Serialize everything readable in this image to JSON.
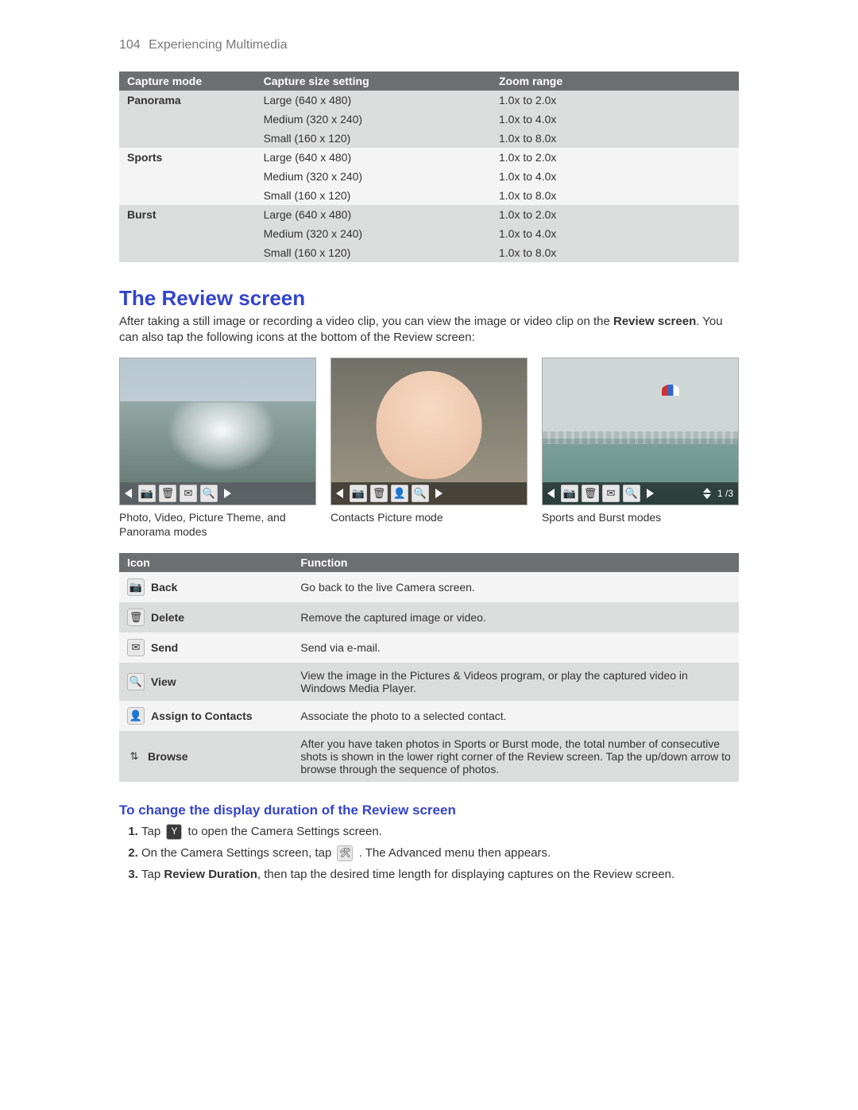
{
  "page": {
    "number": "104",
    "chapter": "Experiencing Multimedia"
  },
  "capture_table": {
    "headers": [
      "Capture mode",
      "Capture size setting",
      "Zoom range"
    ],
    "groups": [
      {
        "mode": "Panorama",
        "rows": [
          {
            "size": "Large (640 x 480)",
            "zoom": "1.0x to 2.0x"
          },
          {
            "size": "Medium (320 x 240)",
            "zoom": "1.0x to 4.0x"
          },
          {
            "size": "Small (160 x 120)",
            "zoom": "1.0x to 8.0x"
          }
        ]
      },
      {
        "mode": "Sports",
        "rows": [
          {
            "size": "Large (640 x 480)",
            "zoom": "1.0x to 2.0x"
          },
          {
            "size": "Medium (320 x 240)",
            "zoom": "1.0x to 4.0x"
          },
          {
            "size": "Small (160 x 120)",
            "zoom": "1.0x to 8.0x"
          }
        ]
      },
      {
        "mode": "Burst",
        "rows": [
          {
            "size": "Large (640 x 480)",
            "zoom": "1.0x to 2.0x"
          },
          {
            "size": "Medium (320 x 240)",
            "zoom": "1.0x to 4.0x"
          },
          {
            "size": "Small (160 x 120)",
            "zoom": "1.0x to 8.0x"
          }
        ]
      }
    ]
  },
  "section": {
    "title": "The Review screen",
    "body_before": "After taking a still image or recording a video clip, you can view the image or video clip on the ",
    "body_bold": "Review screen",
    "body_after": ". You can also tap the following icons at the bottom of the Review screen:"
  },
  "screens": [
    {
      "caption": "Photo, Video, Picture Theme, and Panorama modes",
      "toolbar": [
        "left",
        "camera",
        "trash",
        "mail",
        "zoom",
        "right"
      ]
    },
    {
      "caption": "Contacts Picture mode",
      "toolbar": [
        "left",
        "camera",
        "trash",
        "contact",
        "zoom",
        "right"
      ]
    },
    {
      "caption": "Sports and Burst modes",
      "toolbar": [
        "left",
        "camera",
        "trash",
        "mail",
        "zoom",
        "right",
        "updown"
      ],
      "counter": "1 /3"
    }
  ],
  "icon_table": {
    "headers": [
      "Icon",
      "Function"
    ],
    "rows": [
      {
        "glyph": "📷",
        "name": "camera-icon",
        "label": "Back",
        "func": "Go back to the live Camera screen."
      },
      {
        "glyph": "🗑",
        "name": "trash-icon",
        "label": "Delete",
        "func": "Remove the captured image or video."
      },
      {
        "glyph": "✉",
        "name": "mail-icon",
        "label": "Send",
        "func": "Send via e-mail."
      },
      {
        "glyph": "🔍",
        "name": "zoom-icon",
        "label": "View",
        "func": "View the image in the Pictures & Videos program, or play the captured video in Windows Media Player."
      },
      {
        "glyph": "👤",
        "name": "contact-icon",
        "label": "Assign to Contacts",
        "func": "Associate the photo to a selected contact."
      },
      {
        "glyph": "⇅",
        "name": "browse-icon",
        "label": "Browse",
        "dark": true,
        "func": "After you have taken photos in Sports or Burst mode, the total number of consecutive shots is shown in the lower right corner of the Review screen. Tap the up/down arrow to browse through the sequence of photos."
      }
    ]
  },
  "subsection": {
    "title": "To change the display duration of the Review screen",
    "steps": {
      "s1a": "Tap ",
      "s1_icon": "settings-icon",
      "s1_glyph": "Y",
      "s1b": " to open the Camera Settings screen.",
      "s2a": "On the Camera Settings screen, tap ",
      "s2_icon": "tools-icon",
      "s2_glyph": "🛠",
      "s2b": " . The Advanced menu then appears.",
      "s3a": "Tap ",
      "s3_bold": "Review Duration",
      "s3b": ", then tap the desired time length for displaying captures on the Review screen."
    }
  },
  "colors": {
    "accent": "#3344cc",
    "table_header_bg": "#6d6e6f",
    "band_dark": "#dbdcdc",
    "band_light": "#f4f4f4"
  }
}
